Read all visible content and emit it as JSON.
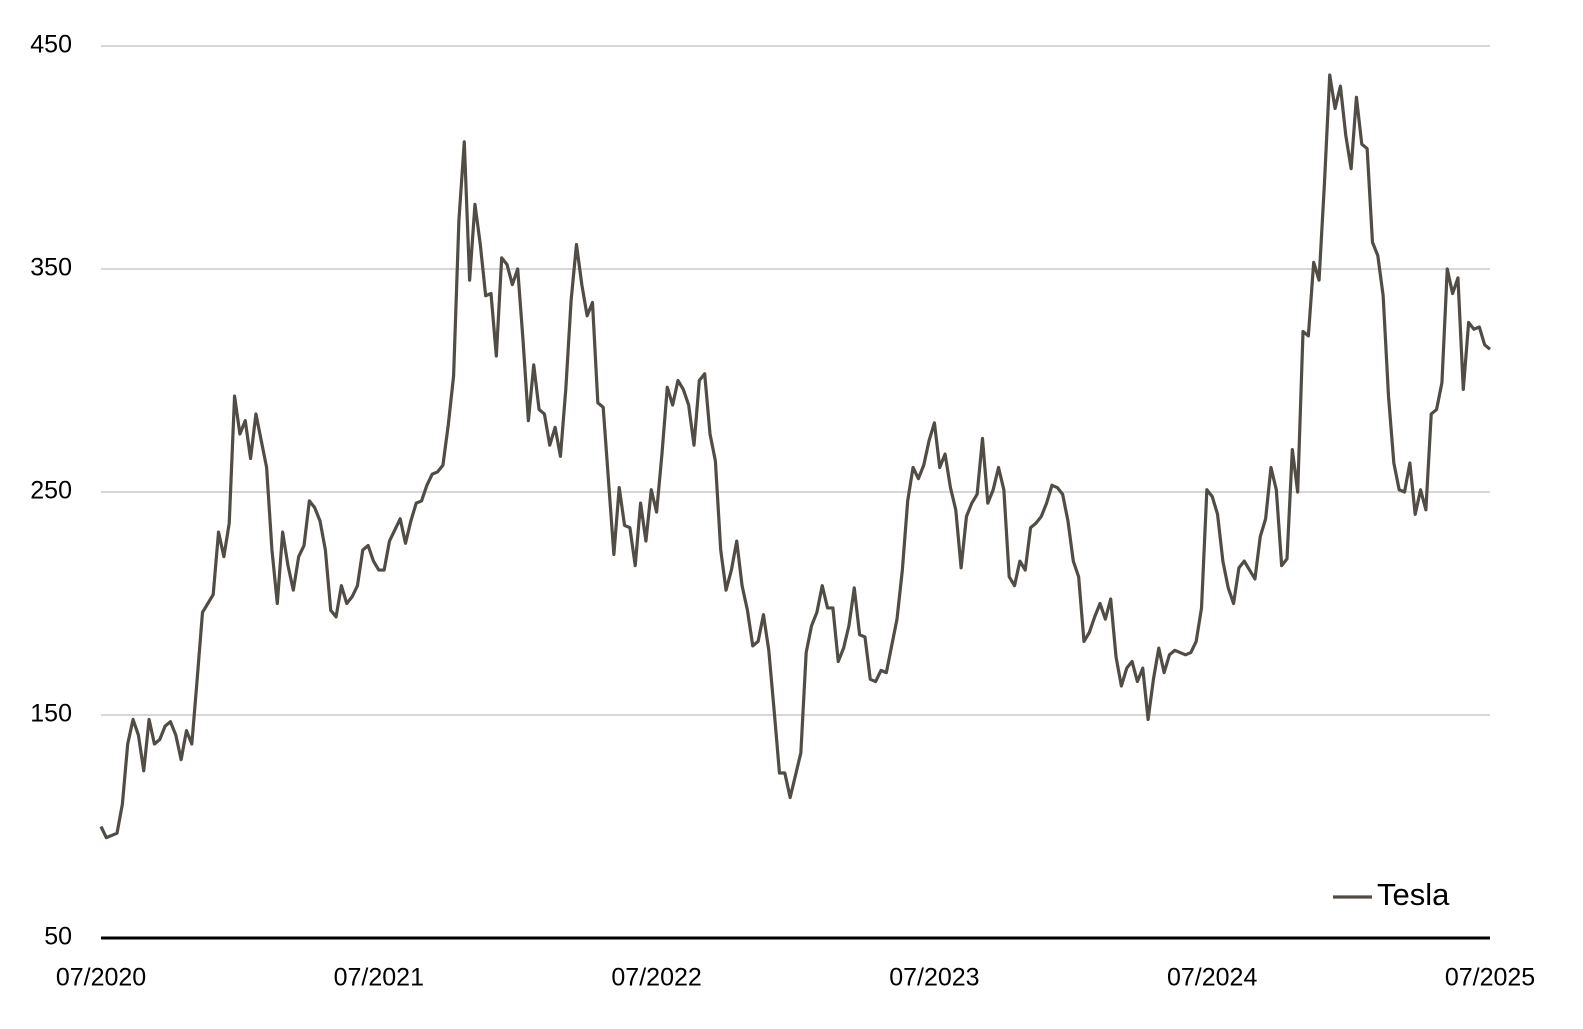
{
  "chart_data": {
    "type": "line",
    "categories": [
      "07/2020",
      null,
      null,
      null,
      null,
      null,
      null,
      null,
      null,
      null,
      null,
      null,
      null,
      null,
      null,
      null,
      null,
      null,
      null,
      null,
      null,
      null,
      null,
      null,
      null,
      null,
      null,
      null,
      null,
      null,
      null,
      null,
      null,
      null,
      null,
      null,
      null,
      null,
      null,
      null,
      null,
      null,
      null,
      null,
      null,
      null,
      null,
      null,
      null,
      null,
      null,
      null,
      "07/2021",
      null,
      null,
      null,
      null,
      null,
      null,
      null,
      null,
      null,
      null,
      null,
      null,
      null,
      null,
      null,
      null,
      null,
      null,
      null,
      null,
      null,
      null,
      null,
      null,
      null,
      null,
      null,
      null,
      null,
      null,
      null,
      null,
      null,
      null,
      null,
      null,
      null,
      null,
      null,
      null,
      null,
      null,
      null,
      null,
      null,
      null,
      null,
      null,
      null,
      null,
      null,
      "07/2022",
      null,
      null,
      null,
      null,
      null,
      null,
      null,
      null,
      null,
      null,
      null,
      null,
      null,
      null,
      null,
      null,
      null,
      null,
      null,
      null,
      null,
      null,
      null,
      null,
      null,
      null,
      null,
      null,
      null,
      null,
      null,
      null,
      null,
      null,
      null,
      null,
      null,
      null,
      null,
      null,
      null,
      null,
      null,
      null,
      null,
      null,
      null,
      null,
      null,
      null,
      null,
      "07/2023",
      null,
      null,
      null,
      null,
      null,
      null,
      null,
      null,
      null,
      null,
      null,
      null,
      null,
      null,
      null,
      null,
      null,
      null,
      null,
      null,
      null,
      null,
      null,
      null,
      null,
      null,
      null,
      null,
      null,
      null,
      null,
      null,
      null,
      null,
      null,
      null,
      null,
      null,
      null,
      null,
      null,
      null,
      null,
      null,
      null,
      null,
      null,
      null,
      null,
      null,
      null,
      "07/2024",
      null,
      null,
      null,
      null,
      null,
      null,
      null,
      null,
      null,
      null,
      null,
      null,
      null,
      null,
      null,
      null,
      null,
      null,
      null,
      null,
      null,
      null,
      null,
      null,
      null,
      null,
      null,
      null,
      null,
      null,
      null,
      null,
      null,
      null,
      null,
      null,
      null,
      null,
      null,
      null,
      null,
      null,
      null,
      null,
      null,
      null,
      null,
      null,
      null,
      null,
      null,
      "07/2025"
    ],
    "series": [
      {
        "name": "Tesla",
        "color": "#514c45",
        "values": [
          100,
          95,
          96,
          97,
          110,
          137,
          148,
          141,
          125,
          148,
          137,
          139,
          145,
          147,
          141,
          130,
          143,
          137,
          166,
          196,
          200,
          204,
          232,
          221,
          236,
          293,
          276,
          282,
          265,
          285,
          273,
          261,
          224,
          200,
          232,
          217,
          206,
          221,
          226,
          246,
          243,
          237,
          224,
          197,
          194,
          208,
          200,
          203,
          208,
          224,
          226,
          219,
          215,
          215,
          228,
          233,
          238,
          227,
          237,
          245,
          246,
          253,
          258,
          259,
          262,
          280,
          302,
          372,
          407,
          345,
          379,
          361,
          338,
          339,
          311,
          355,
          352,
          343,
          350,
          318,
          282,
          307,
          287,
          285,
          271,
          279,
          266,
          296,
          336,
          361,
          343,
          329,
          335,
          290,
          288,
          255,
          222,
          252,
          235,
          234,
          217,
          245,
          228,
          251,
          241,
          267,
          297,
          289,
          300,
          296,
          289,
          271,
          300,
          303,
          276,
          264,
          224,
          206,
          215,
          228,
          208,
          197,
          181,
          183,
          195,
          179,
          152,
          124,
          124,
          113,
          123,
          133,
          178,
          190,
          196,
          208,
          198,
          198,
          174,
          180,
          190,
          207,
          186,
          185,
          166,
          165,
          170,
          169,
          181,
          193,
          215,
          246,
          261,
          256,
          262,
          273,
          281,
          261,
          267,
          252,
          242,
          216,
          239,
          245,
          249,
          274,
          245,
          251,
          261,
          251,
          212,
          208,
          219,
          215,
          234,
          236,
          239,
          245,
          253,
          252,
          249,
          237,
          219,
          212,
          183,
          187,
          194,
          200,
          193,
          202,
          176,
          163,
          171,
          174,
          165,
          171,
          148,
          166,
          180,
          169,
          177,
          179,
          178,
          177,
          178,
          183,
          198,
          251,
          248,
          240,
          219,
          207,
          200,
          216,
          219,
          215,
          211,
          230,
          238,
          261,
          251,
          217,
          220,
          269,
          250,
          322,
          320,
          353,
          345,
          388,
          437,
          422,
          432,
          410,
          395,
          427,
          406,
          404,
          362,
          356,
          338,
          293,
          263,
          251,
          250,
          263,
          240,
          251,
          242,
          285,
          287,
          299,
          350,
          339,
          346,
          296,
          326,
          323,
          324,
          316,
          314
        ]
      }
    ],
    "ylim": [
      50,
      450
    ],
    "yticks": [
      50,
      150,
      250,
      350,
      450
    ],
    "grid": true,
    "legend": "lower right"
  }
}
